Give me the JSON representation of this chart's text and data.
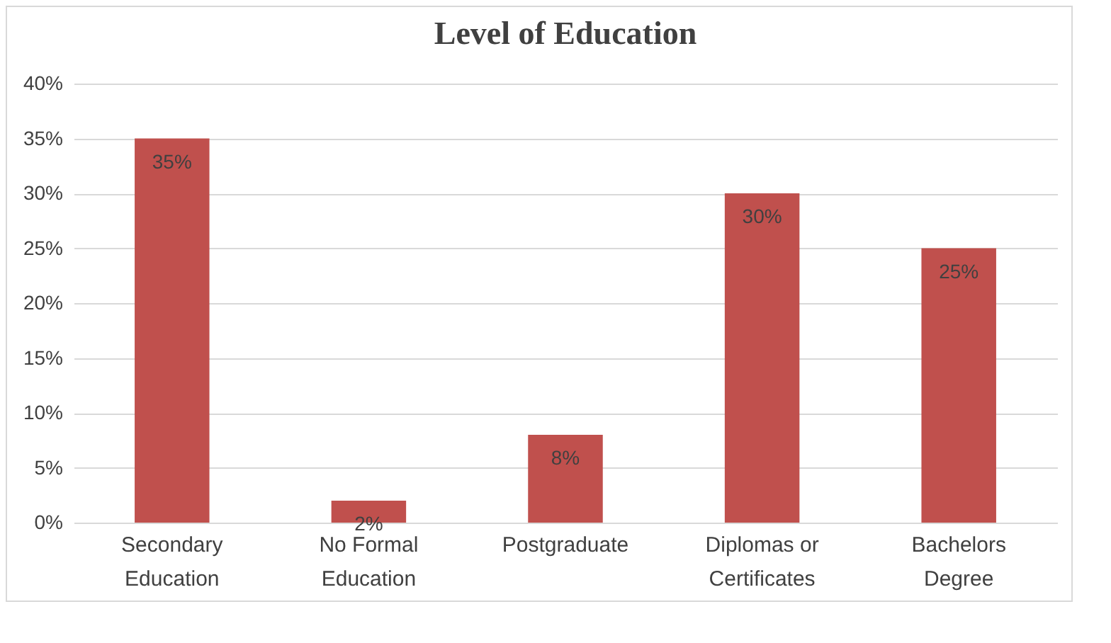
{
  "chart_data": {
    "type": "bar",
    "title": "Level of Education",
    "categories": [
      "Secondary Education",
      "No Formal Education",
      "Postgraduate",
      "Diplomas or Certificates",
      "Bachelors Degree"
    ],
    "values": [
      35,
      2,
      8,
      30,
      25
    ],
    "value_labels": [
      "35%",
      "2%",
      "8%",
      "30%",
      "25%"
    ],
    "color": "#c0504d",
    "ylim": [
      0,
      40
    ],
    "yticks": [
      {
        "value": 0,
        "label": "0%"
      },
      {
        "value": 5,
        "label": "5%"
      },
      {
        "value": 10,
        "label": "10%"
      },
      {
        "value": 15,
        "label": "15%"
      },
      {
        "value": 20,
        "label": "20%"
      },
      {
        "value": 25,
        "label": "25%"
      },
      {
        "value": 30,
        "label": "30%"
      },
      {
        "value": 35,
        "label": "35%"
      },
      {
        "value": 40,
        "label": "40%"
      }
    ],
    "grid": "y"
  }
}
